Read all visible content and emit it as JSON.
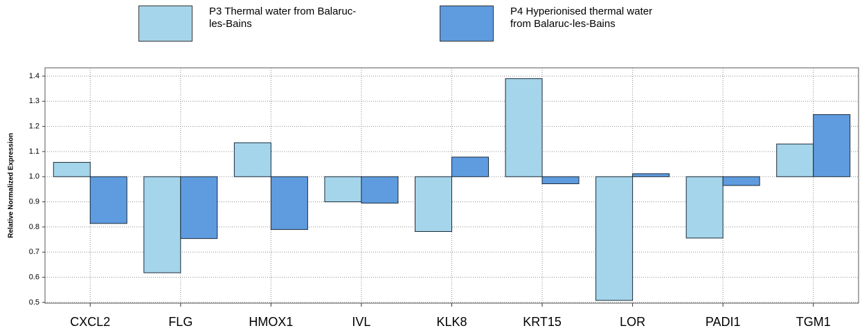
{
  "chart_data": {
    "type": "bar",
    "y_label": "Relative Normalized Expression",
    "categories": [
      "CXCL2",
      "FLG",
      "HMOX1",
      "IVL",
      "KLK8",
      "KRT15",
      "LOR",
      "PADI1",
      "TGM1"
    ],
    "series": [
      {
        "name": "P3 Thermal water from Balaruc-les-Bains",
        "color": "#a5d5ea",
        "values": [
          1.057,
          0.618,
          1.135,
          0.9,
          0.782,
          1.39,
          0.508,
          0.756,
          1.13
        ]
      },
      {
        "name": "P4 Hyperionised thermal water from Balaruc-les-Bains",
        "color": "#5f9bdf",
        "values": [
          0.814,
          0.754,
          0.79,
          0.895,
          1.078,
          0.972,
          1.012,
          0.965,
          1.247
        ]
      }
    ],
    "baseline": 1.0,
    "ylim": [
      0.497,
      1.433
    ],
    "yticks": [
      0.5,
      0.6,
      0.7,
      0.8,
      0.9,
      {
        "value": 1.0,
        "label": "1.0"
      },
      1.1,
      1.2,
      1.3,
      1.4
    ],
    "grid": true
  }
}
